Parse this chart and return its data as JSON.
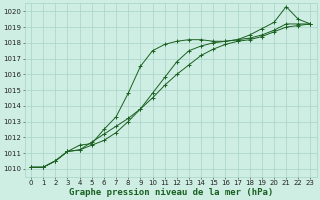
{
  "x": [
    0,
    1,
    2,
    3,
    4,
    5,
    6,
    7,
    8,
    9,
    10,
    11,
    12,
    13,
    14,
    15,
    16,
    17,
    18,
    19,
    20,
    21,
    22,
    23
  ],
  "line1": [
    1010.1,
    1010.1,
    1010.5,
    1011.1,
    1011.2,
    1011.7,
    1012.2,
    1012.7,
    1013.2,
    1013.8,
    1014.5,
    1015.3,
    1016.0,
    1016.6,
    1017.2,
    1017.6,
    1017.9,
    1018.1,
    1018.2,
    1018.4,
    1018.7,
    1019.0,
    1019.1,
    1019.2
  ],
  "line2": [
    1010.1,
    1010.1,
    1010.5,
    1011.1,
    1011.2,
    1011.5,
    1011.8,
    1012.3,
    1013.0,
    1013.8,
    1014.8,
    1015.8,
    1016.8,
    1017.5,
    1017.8,
    1018.0,
    1018.1,
    1018.2,
    1018.3,
    1018.5,
    1018.8,
    1019.2,
    1019.2,
    1019.2
  ],
  "line3": [
    1010.1,
    1010.1,
    1010.5,
    1011.1,
    1011.5,
    1011.6,
    1012.5,
    1013.3,
    1014.8,
    1016.5,
    1017.5,
    1017.9,
    1018.1,
    1018.2,
    1018.2,
    1018.1,
    1018.1,
    1018.2,
    1018.5,
    1018.9,
    1019.3,
    1020.3,
    1019.5,
    1019.2
  ],
  "bg_color": "#ceeee4",
  "grid_color": "#aad4c8",
  "line_color": "#1a6020",
  "ylabel_ticks": [
    1010,
    1011,
    1012,
    1013,
    1014,
    1015,
    1016,
    1017,
    1018,
    1019,
    1020
  ],
  "ylim": [
    1009.5,
    1020.5
  ],
  "xlim": [
    -0.5,
    23.5
  ],
  "xlabel": "Graphe pression niveau de la mer (hPa)",
  "xlabel_fontsize": 6.5,
  "tick_fontsize": 5.0
}
